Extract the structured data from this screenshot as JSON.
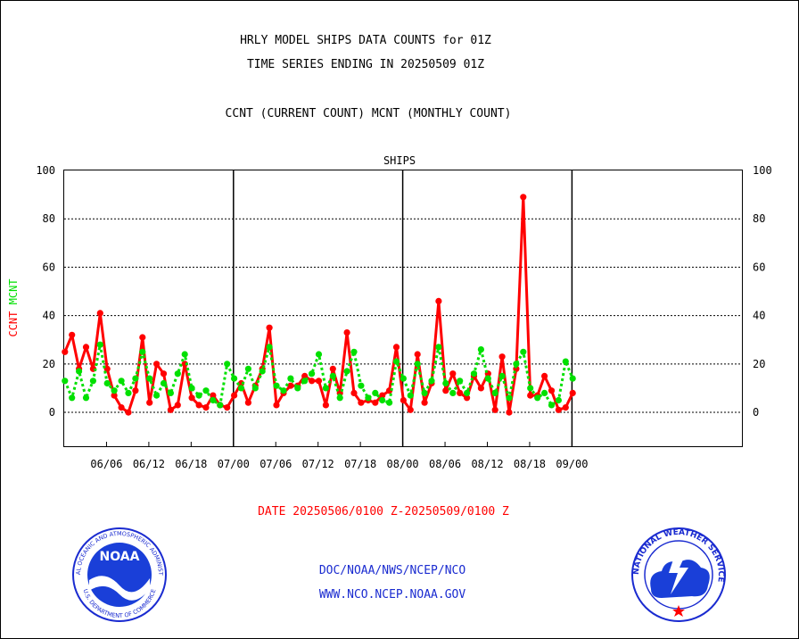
{
  "title_line1": "HRLY MODEL SHIPS DATA COUNTS for 01Z",
  "title_line2": "TIME SERIES ENDING IN 20250509 01Z",
  "title_line3": "CCNT (CURRENT COUNT) MCNT (MONTHLY COUNT)",
  "footer": {
    "date_range": "DATE 20250506/0100 Z-20250509/0100 Z",
    "org": "DOC/NOAA/NWS/NCEP/NCO",
    "url": "WWW.NCO.NCEP.NOAA.GOV"
  },
  "logos": {
    "noaa_text": "NOAA",
    "noaa_ring_top": "NATIONAL OCEANIC AND ATMOSPHERIC ADMINISTRATION",
    "noaa_ring_bottom": "U.S. DEPARTMENT OF COMMERCE",
    "nws_ring": "NATIONAL WEATHER SERVICE"
  },
  "colors": {
    "ccnt": "#ff0000",
    "mcnt": "#00e000",
    "series_title": "#1a2bd0",
    "axis": "#000000"
  },
  "chart_data": {
    "type": "line",
    "title": "SHIPS",
    "ylabel_parts": [
      {
        "text": "CCNT",
        "color": "#ff0000"
      },
      {
        "text": "MCNT",
        "color": "#00e000"
      }
    ],
    "ylim": [
      -14,
      100
    ],
    "yticks": [
      0,
      20,
      40,
      60,
      80,
      100
    ],
    "ytick_labels": [
      "0",
      "20",
      "40",
      "60",
      "80",
      "100"
    ],
    "grid": "horizontal dotted at y ticks",
    "xlim_days": [
      0,
      96.1
    ],
    "xticks": [
      {
        "label": "06/06",
        "day": 6
      },
      {
        "label": "06/12",
        "day": 12
      },
      {
        "label": "06/18",
        "day": 18
      },
      {
        "label": "07/00",
        "day": 24
      },
      {
        "label": "07/06",
        "day": 30
      },
      {
        "label": "07/12",
        "day": 36
      },
      {
        "label": "07/18",
        "day": 42
      },
      {
        "label": "08/00",
        "day": 48
      },
      {
        "label": "08/06",
        "day": 54
      },
      {
        "label": "08/12",
        "day": 60
      },
      {
        "label": "08/18",
        "day": 66
      },
      {
        "label": "09/00",
        "day": 72
      }
    ],
    "month_boundaries": [
      24,
      48,
      72
    ],
    "series": [
      {
        "name": "CCNT",
        "color": "#ff0000",
        "values": [
          25,
          32,
          18,
          27,
          18,
          41,
          18,
          7,
          2,
          0,
          9,
          31,
          4,
          20,
          16,
          1,
          3,
          20,
          6,
          3,
          2,
          7,
          3,
          2,
          7,
          12,
          4,
          11,
          18,
          35,
          3,
          8,
          11,
          11,
          15,
          13,
          13,
          3,
          18,
          8,
          33,
          8,
          4,
          5,
          4,
          7,
          9,
          27,
          5,
          1,
          24,
          4,
          12,
          46,
          9,
          16,
          8,
          6,
          15,
          10,
          16,
          1,
          23,
          0,
          18,
          89,
          7,
          7,
          15,
          9,
          1,
          2,
          8
        ]
      },
      {
        "name": "MCNT",
        "color": "#00e000",
        "values": [
          13,
          6,
          17,
          6,
          13,
          28,
          12,
          9,
          13,
          8,
          14,
          25,
          14,
          7,
          12,
          8,
          16,
          24,
          10,
          7,
          9,
          5,
          3,
          20,
          14,
          10,
          18,
          10,
          17,
          27,
          11,
          9,
          14,
          10,
          13,
          16,
          24,
          10,
          15,
          6,
          17,
          25,
          11,
          6,
          8,
          5,
          4,
          21,
          14,
          7,
          20,
          8,
          13,
          27,
          12,
          8,
          13,
          8,
          16,
          26,
          14,
          8,
          15,
          6,
          20,
          25,
          10,
          6,
          8,
          3,
          5,
          21,
          14
        ]
      }
    ]
  }
}
